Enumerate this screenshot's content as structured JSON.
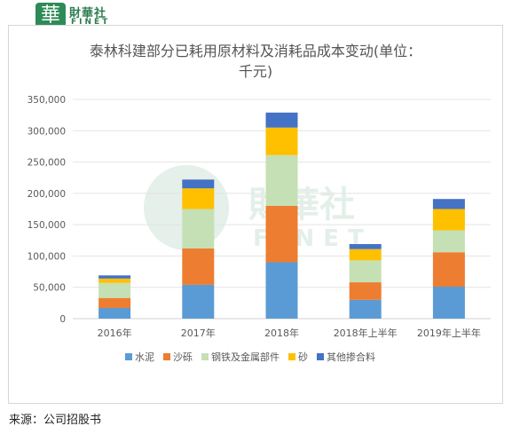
{
  "logo": {
    "badge_char": "華",
    "name_cn": "財華社",
    "name_en": "FINET",
    "icon": "finet-logo-icon"
  },
  "watermark": {
    "name_cn": "財華社",
    "name_en": "FINET"
  },
  "source": "来源：公司招股书",
  "chart_data": {
    "type": "bar",
    "stacked": true,
    "title_line1": "泰林科建部分已耗用原材料及消耗品成本变动(单位：",
    "title_line2": "千元)",
    "categories": [
      "2016年",
      "2017年",
      "2018年",
      "2018年上半年",
      "2019年上半年"
    ],
    "ylim": [
      0,
      350000
    ],
    "yticks": [
      "0",
      "50,000",
      "100,000",
      "150,000",
      "200,000",
      "250,000",
      "300,000",
      "350,000"
    ],
    "grid": true,
    "legend_position": "bottom",
    "series": [
      {
        "name": "水泥",
        "color": "#5b9bd5",
        "values": [
          17000,
          54000,
          90000,
          30000,
          51000
        ]
      },
      {
        "name": "沙砾",
        "color": "#ed7d31",
        "values": [
          16000,
          58000,
          90000,
          28000,
          55000
        ]
      },
      {
        "name": "钢铁及金属部件",
        "color": "#c5e0b4",
        "values": [
          24000,
          63000,
          81000,
          35000,
          35000
        ]
      },
      {
        "name": "砂",
        "color": "#ffc000",
        "values": [
          7000,
          33000,
          44000,
          18000,
          34000
        ]
      },
      {
        "name": "其他掺合料",
        "color": "#4472c4",
        "values": [
          5000,
          14000,
          24000,
          8000,
          16000
        ]
      }
    ]
  }
}
